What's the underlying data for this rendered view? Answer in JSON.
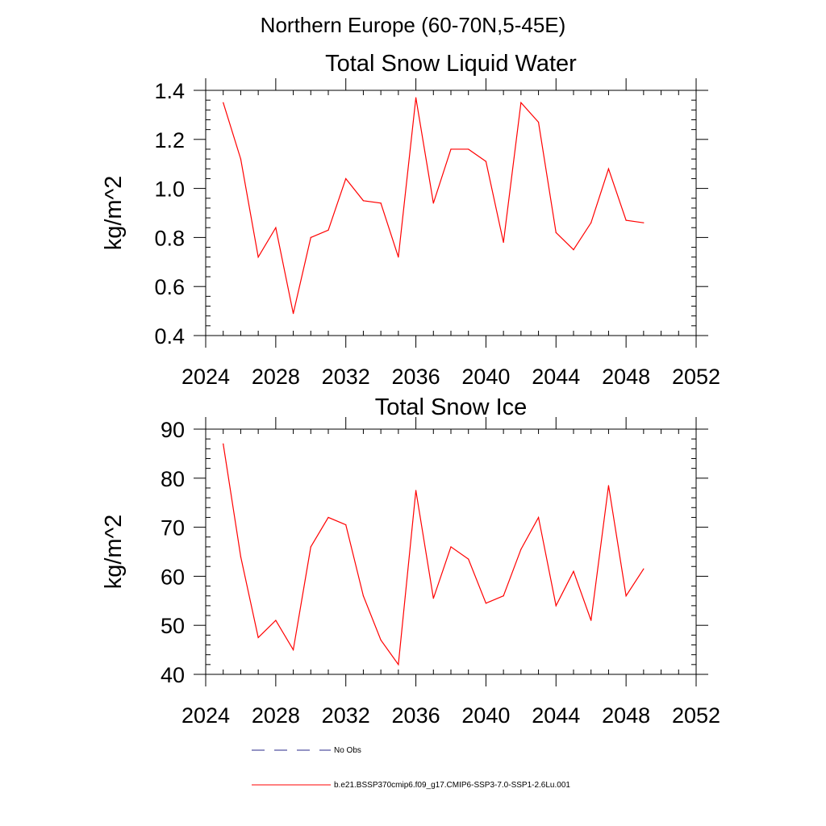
{
  "figure": {
    "title": "Northern Europe (60-70N,5-45E)"
  },
  "legend": [
    {
      "label": "No Obs",
      "color": "#2a2a8a",
      "dash": true
    },
    {
      "label": "b.e21.BSSP370cmip6.f09_g17.CMIP6-SSP3-7.0-SSP1-2.6Lu.001",
      "color": "#ff0000",
      "dash": false
    }
  ],
  "chart_data": [
    {
      "type": "line",
      "title": "Total Snow Liquid Water",
      "ylabel": "kg/m^2",
      "xlabel": "",
      "xlim": [
        2024,
        2052
      ],
      "ylim": [
        0.4,
        1.4
      ],
      "xticks": [
        2024,
        2028,
        2032,
        2036,
        2040,
        2044,
        2048,
        2052
      ],
      "yticks": [
        "0.4",
        "0.6",
        "0.8",
        "1.0",
        "1.2",
        "1.4"
      ],
      "series": [
        {
          "color": "#ff0000",
          "x": [
            2025,
            2026,
            2027,
            2028,
            2029,
            2030,
            2031,
            2032,
            2033,
            2034,
            2035,
            2036,
            2037,
            2038,
            2039,
            2040,
            2041,
            2042,
            2043,
            2044,
            2045,
            2046,
            2047,
            2048,
            2049
          ],
          "y": [
            1.35,
            1.12,
            0.72,
            0.84,
            0.49,
            0.8,
            0.83,
            1.04,
            0.95,
            0.94,
            0.72,
            1.37,
            0.94,
            1.16,
            1.16,
            1.11,
            0.78,
            1.35,
            1.27,
            0.82,
            0.75,
            0.86,
            1.08,
            0.87,
            0.86
          ]
        }
      ]
    },
    {
      "type": "line",
      "title": "Total Snow Ice",
      "ylabel": "kg/m^2",
      "xlabel": "",
      "xlim": [
        2024,
        2052
      ],
      "ylim": [
        40,
        90
      ],
      "xticks": [
        2024,
        2028,
        2032,
        2036,
        2040,
        2044,
        2048,
        2052
      ],
      "yticks": [
        "40",
        "50",
        "60",
        "70",
        "80",
        "90"
      ],
      "series": [
        {
          "color": "#ff0000",
          "x": [
            2025,
            2026,
            2027,
            2028,
            2029,
            2030,
            2031,
            2032,
            2033,
            2034,
            2035,
            2036,
            2037,
            2038,
            2039,
            2040,
            2041,
            2042,
            2043,
            2044,
            2045,
            2046,
            2047,
            2048,
            2049
          ],
          "y": [
            87,
            64,
            47.5,
            51,
            45,
            66,
            72,
            70.5,
            56,
            47,
            42,
            77.5,
            55.5,
            66,
            63.5,
            54.5,
            56,
            65.5,
            72,
            54,
            61,
            51,
            78.5,
            56,
            61.5
          ]
        }
      ]
    }
  ]
}
